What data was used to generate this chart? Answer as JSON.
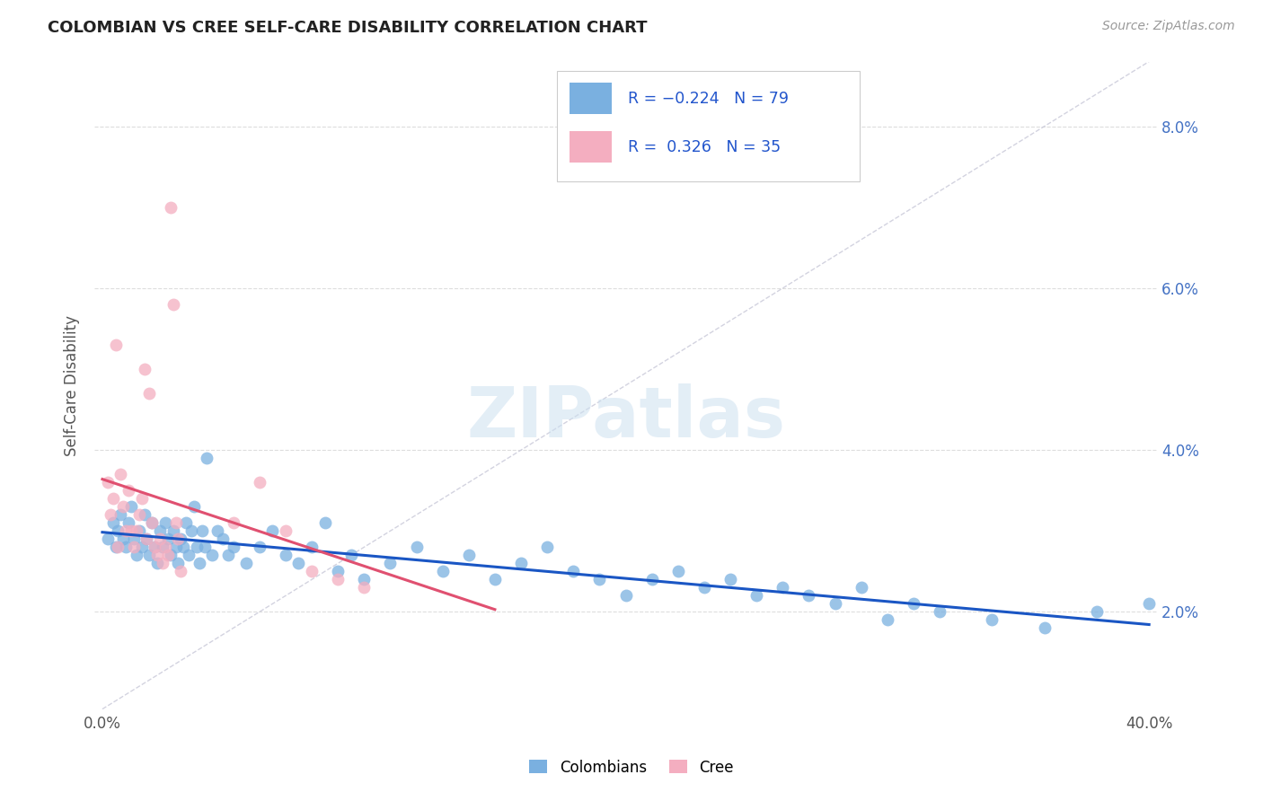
{
  "title": "COLOMBIAN VS CREE SELF-CARE DISABILITY CORRELATION CHART",
  "source": "Source: ZipAtlas.com",
  "ylabel": "Self-Care Disability",
  "ytick_labels": [
    "2.0%",
    "4.0%",
    "6.0%",
    "8.0%"
  ],
  "ytick_values": [
    0.02,
    0.04,
    0.06,
    0.08
  ],
  "xlim": [
    -0.003,
    0.403
  ],
  "ylim": [
    0.008,
    0.088
  ],
  "colombian_color": "#7ab0e0",
  "cree_color": "#f4aec0",
  "colombian_line_color": "#1a56c4",
  "cree_line_color": "#e05070",
  "diagonal_line_color": "#c8c8d8",
  "watermark": "ZIPatlas",
  "colombians_x": [
    0.002,
    0.004,
    0.005,
    0.006,
    0.007,
    0.008,
    0.009,
    0.01,
    0.011,
    0.012,
    0.013,
    0.014,
    0.015,
    0.016,
    0.017,
    0.018,
    0.019,
    0.02,
    0.021,
    0.022,
    0.023,
    0.024,
    0.025,
    0.026,
    0.027,
    0.028,
    0.029,
    0.03,
    0.031,
    0.032,
    0.033,
    0.034,
    0.035,
    0.036,
    0.037,
    0.038,
    0.039,
    0.04,
    0.042,
    0.044,
    0.046,
    0.048,
    0.05,
    0.055,
    0.06,
    0.065,
    0.07,
    0.075,
    0.08,
    0.085,
    0.09,
    0.095,
    0.1,
    0.11,
    0.12,
    0.13,
    0.14,
    0.15,
    0.16,
    0.17,
    0.18,
    0.19,
    0.2,
    0.21,
    0.22,
    0.23,
    0.24,
    0.25,
    0.26,
    0.27,
    0.28,
    0.29,
    0.3,
    0.31,
    0.32,
    0.34,
    0.36,
    0.38,
    0.4
  ],
  "colombians_y": [
    0.029,
    0.031,
    0.028,
    0.03,
    0.032,
    0.029,
    0.028,
    0.031,
    0.033,
    0.029,
    0.027,
    0.03,
    0.028,
    0.032,
    0.029,
    0.027,
    0.031,
    0.028,
    0.026,
    0.03,
    0.028,
    0.031,
    0.029,
    0.027,
    0.03,
    0.028,
    0.026,
    0.029,
    0.028,
    0.031,
    0.027,
    0.03,
    0.033,
    0.028,
    0.026,
    0.03,
    0.028,
    0.039,
    0.027,
    0.03,
    0.029,
    0.027,
    0.028,
    0.026,
    0.028,
    0.03,
    0.027,
    0.026,
    0.028,
    0.031,
    0.025,
    0.027,
    0.024,
    0.026,
    0.028,
    0.025,
    0.027,
    0.024,
    0.026,
    0.028,
    0.025,
    0.024,
    0.022,
    0.024,
    0.025,
    0.023,
    0.024,
    0.022,
    0.023,
    0.022,
    0.021,
    0.023,
    0.019,
    0.021,
    0.02,
    0.019,
    0.018,
    0.02,
    0.021
  ],
  "cree_x": [
    0.002,
    0.003,
    0.004,
    0.005,
    0.006,
    0.007,
    0.008,
    0.009,
    0.01,
    0.011,
    0.012,
    0.013,
    0.014,
    0.015,
    0.016,
    0.017,
    0.018,
    0.019,
    0.02,
    0.021,
    0.022,
    0.023,
    0.024,
    0.025,
    0.026,
    0.027,
    0.028,
    0.029,
    0.03,
    0.05,
    0.06,
    0.07,
    0.08,
    0.09,
    0.1
  ],
  "cree_y": [
    0.036,
    0.032,
    0.034,
    0.053,
    0.028,
    0.037,
    0.033,
    0.03,
    0.035,
    0.03,
    0.028,
    0.03,
    0.032,
    0.034,
    0.05,
    0.029,
    0.047,
    0.031,
    0.028,
    0.027,
    0.029,
    0.026,
    0.028,
    0.027,
    0.07,
    0.058,
    0.031,
    0.029,
    0.025,
    0.031,
    0.036,
    0.03,
    0.025,
    0.024,
    0.023
  ]
}
